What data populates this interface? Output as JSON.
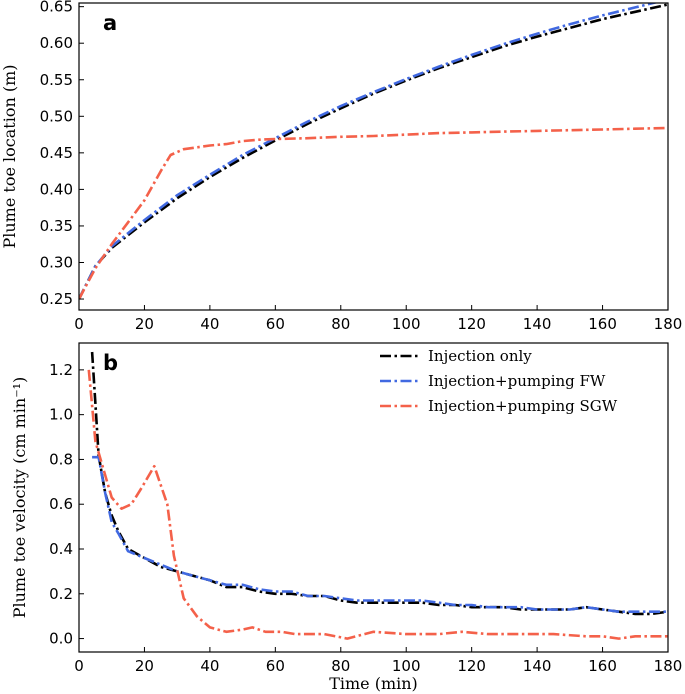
{
  "colors": {
    "injection_only": "#000000",
    "pumping_fw": "#4169e1",
    "pumping_sgw": "#f4614a"
  },
  "chart_data": [
    {
      "type": "line",
      "panel_label": "a",
      "xlabel": "",
      "ylabel": "Plume toe location (m)",
      "xlim": [
        0,
        180
      ],
      "ylim": [
        0.235,
        0.655
      ],
      "xticks": [
        "0",
        "20",
        "40",
        "60",
        "80",
        "100",
        "120",
        "140",
        "160",
        "180"
      ],
      "yticks": [
        "0.25",
        "0.30",
        "0.35",
        "0.40",
        "0.45",
        "0.50",
        "0.55",
        "0.60",
        "0.65"
      ],
      "grid": false,
      "legend": "none",
      "series": [
        {
          "key": "injection_only",
          "x": [
            0,
            5,
            10,
            20,
            30,
            40,
            50,
            60,
            70,
            80,
            90,
            100,
            110,
            120,
            130,
            140,
            150,
            160,
            170,
            180
          ],
          "y": [
            0.25,
            0.295,
            0.32,
            0.355,
            0.388,
            0.417,
            0.443,
            0.467,
            0.49,
            0.511,
            0.531,
            0.549,
            0.566,
            0.581,
            0.596,
            0.609,
            0.621,
            0.633,
            0.643,
            0.653
          ]
        },
        {
          "key": "pumping_fw",
          "x": [
            0,
            5,
            10,
            20,
            30,
            40,
            50,
            60,
            70,
            80,
            90,
            100,
            110,
            120,
            130,
            140,
            150,
            160,
            170,
            180
          ],
          "y": [
            0.25,
            0.295,
            0.322,
            0.358,
            0.392,
            0.42,
            0.447,
            0.47,
            0.493,
            0.514,
            0.533,
            0.551,
            0.568,
            0.584,
            0.599,
            0.613,
            0.626,
            0.638,
            0.649,
            0.66
          ]
        },
        {
          "key": "pumping_sgw",
          "x": [
            0,
            5,
            10,
            15,
            20,
            25,
            28,
            32,
            40,
            45,
            50,
            55,
            60,
            70,
            80,
            90,
            100,
            110,
            120,
            130,
            140,
            150,
            160,
            170,
            180
          ],
          "y": [
            0.25,
            0.292,
            0.325,
            0.355,
            0.385,
            0.425,
            0.447,
            0.455,
            0.46,
            0.462,
            0.466,
            0.468,
            0.469,
            0.47,
            0.472,
            0.473,
            0.475,
            0.477,
            0.478,
            0.479,
            0.48,
            0.481,
            0.482,
            0.483,
            0.484
          ]
        }
      ]
    },
    {
      "type": "line",
      "panel_label": "b",
      "xlabel": "Time (min)",
      "ylabel": "Plume toe velocity (cm min⁻¹)",
      "xlim": [
        0,
        180
      ],
      "ylim": [
        -0.06,
        1.32
      ],
      "xticks": [
        "0",
        "20",
        "40",
        "60",
        "80",
        "100",
        "120",
        "140",
        "160",
        "180"
      ],
      "yticks": [
        "0.0",
        "0.2",
        "0.4",
        "0.6",
        "0.8",
        "1.0",
        "1.2"
      ],
      "grid": false,
      "legend": "top-right",
      "series": [
        {
          "key": "injection_only",
          "name": "Injection only",
          "x": [
            4,
            5,
            6,
            8,
            10,
            12,
            15,
            20,
            25,
            30,
            35,
            40,
            45,
            50,
            55,
            60,
            65,
            70,
            75,
            80,
            85,
            90,
            95,
            100,
            105,
            110,
            115,
            120,
            125,
            130,
            135,
            140,
            145,
            150,
            155,
            160,
            165,
            170,
            175,
            180
          ],
          "y": [
            1.28,
            1.05,
            0.82,
            0.65,
            0.55,
            0.48,
            0.4,
            0.36,
            0.32,
            0.3,
            0.28,
            0.26,
            0.23,
            0.23,
            0.21,
            0.2,
            0.2,
            0.19,
            0.19,
            0.17,
            0.16,
            0.16,
            0.16,
            0.16,
            0.16,
            0.15,
            0.15,
            0.14,
            0.14,
            0.14,
            0.13,
            0.13,
            0.13,
            0.13,
            0.14,
            0.13,
            0.12,
            0.11,
            0.11,
            0.12
          ]
        },
        {
          "key": "pumping_fw",
          "name": "Injection+pumping FW",
          "x": [
            4,
            6,
            8,
            10,
            12,
            15,
            20,
            25,
            30,
            35,
            40,
            45,
            50,
            55,
            60,
            65,
            70,
            75,
            80,
            85,
            90,
            95,
            100,
            105,
            110,
            115,
            120,
            125,
            130,
            135,
            140,
            145,
            150,
            155,
            160,
            165,
            170,
            175,
            180
          ],
          "y": [
            0.81,
            0.81,
            0.65,
            0.52,
            0.47,
            0.39,
            0.36,
            0.33,
            0.3,
            0.28,
            0.26,
            0.24,
            0.24,
            0.22,
            0.21,
            0.21,
            0.19,
            0.19,
            0.18,
            0.17,
            0.17,
            0.17,
            0.17,
            0.17,
            0.16,
            0.15,
            0.15,
            0.14,
            0.14,
            0.14,
            0.13,
            0.13,
            0.13,
            0.14,
            0.13,
            0.12,
            0.12,
            0.12,
            0.12
          ]
        },
        {
          "key": "pumping_sgw",
          "name": "Injection+pumping SGW",
          "x": [
            3,
            5,
            7,
            10,
            13,
            16,
            19,
            23,
            27,
            29,
            32,
            36,
            40,
            45,
            50,
            53,
            57,
            62,
            66,
            70,
            75,
            82,
            90,
            100,
            110,
            117,
            125,
            135,
            145,
            155,
            160,
            165,
            170,
            175,
            180
          ],
          "y": [
            1.2,
            0.88,
            0.78,
            0.63,
            0.58,
            0.6,
            0.67,
            0.77,
            0.6,
            0.37,
            0.18,
            0.1,
            0.05,
            0.03,
            0.04,
            0.05,
            0.03,
            0.03,
            0.02,
            0.02,
            0.02,
            0.0,
            0.03,
            0.02,
            0.02,
            0.03,
            0.02,
            0.02,
            0.02,
            0.01,
            0.01,
            0.0,
            0.01,
            0.01,
            0.01
          ]
        }
      ]
    }
  ]
}
